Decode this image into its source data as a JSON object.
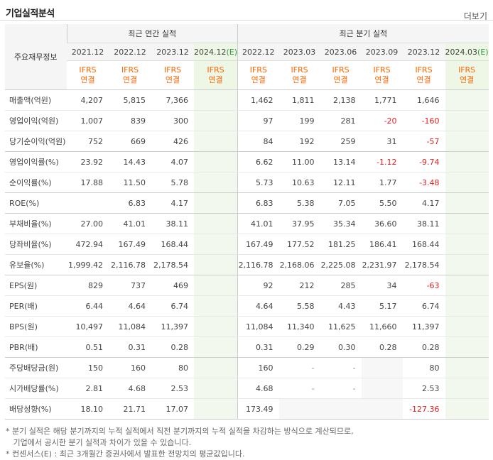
{
  "header": {
    "title": "기업실적분석",
    "more": "더보기"
  },
  "table": {
    "label_header": "주요재무정보",
    "group_annual": "최근 연간 실적",
    "group_quarter": "최근 분기 실적",
    "annual_periods": [
      "2021.12",
      "2022.12",
      "2023.12",
      "2024.12"
    ],
    "quarter_periods": [
      "2022.12",
      "2023.03",
      "2023.06",
      "2023.09",
      "2023.12",
      "2024.03"
    ],
    "estimate_mark": "(E)",
    "ifrs_line1": "IFRS",
    "ifrs_line2": "연결",
    "rows": [
      {
        "label": "매출액(억원)",
        "annual": [
          "4,207",
          "5,815",
          "7,366",
          ""
        ],
        "quarter": [
          "1,462",
          "1,811",
          "2,138",
          "1,771",
          "1,646",
          ""
        ]
      },
      {
        "label": "영업이익(억원)",
        "annual": [
          "1,007",
          "839",
          "300",
          ""
        ],
        "quarter": [
          "97",
          "199",
          "281",
          "-20",
          "-160",
          ""
        ]
      },
      {
        "label": "당기순이익(억원)",
        "annual": [
          "752",
          "669",
          "426",
          ""
        ],
        "quarter": [
          "84",
          "192",
          "259",
          "31",
          "-57",
          ""
        ]
      },
      {
        "label": "영업이익률(%)",
        "annual": [
          "23.92",
          "14.43",
          "4.07",
          ""
        ],
        "quarter": [
          "6.62",
          "11.00",
          "13.14",
          "-1.12",
          "-9.74",
          ""
        ]
      },
      {
        "label": "순이익률(%)",
        "annual": [
          "17.88",
          "11.50",
          "5.78",
          ""
        ],
        "quarter": [
          "5.73",
          "10.63",
          "12.11",
          "1.77",
          "-3.48",
          ""
        ]
      },
      {
        "label": "ROE(%)",
        "annual": [
          "",
          "6.83",
          "4.17",
          ""
        ],
        "quarter": [
          "6.83",
          "5.38",
          "7.05",
          "5.50",
          "4.17",
          ""
        ]
      },
      {
        "label": "부채비율(%)",
        "annual": [
          "27.00",
          "41.01",
          "38.11",
          ""
        ],
        "quarter": [
          "41.01",
          "37.95",
          "35.34",
          "36.60",
          "38.11",
          ""
        ]
      },
      {
        "label": "당좌비율(%)",
        "annual": [
          "472.94",
          "167.49",
          "168.44",
          ""
        ],
        "quarter": [
          "167.49",
          "177.52",
          "181.25",
          "186.41",
          "168.44",
          ""
        ]
      },
      {
        "label": "유보율(%)",
        "annual": [
          "1,999.42",
          "2,116.78",
          "2,178.54",
          ""
        ],
        "quarter": [
          "2,116.78",
          "2,168.06",
          "2,225.08",
          "2,231.97",
          "2,178.54",
          ""
        ]
      },
      {
        "label": "EPS(원)",
        "annual": [
          "829",
          "737",
          "469",
          ""
        ],
        "quarter": [
          "92",
          "212",
          "285",
          "34",
          "-63",
          ""
        ]
      },
      {
        "label": "PER(배)",
        "annual": [
          "6.44",
          "4.64",
          "6.74",
          ""
        ],
        "quarter": [
          "4.64",
          "5.58",
          "4.43",
          "5.17",
          "6.74",
          ""
        ]
      },
      {
        "label": "BPS(원)",
        "annual": [
          "10,497",
          "11,084",
          "11,397",
          ""
        ],
        "quarter": [
          "11,084",
          "11,340",
          "11,625",
          "11,660",
          "11,397",
          ""
        ]
      },
      {
        "label": "PBR(배)",
        "annual": [
          "0.51",
          "0.31",
          "0.28",
          ""
        ],
        "quarter": [
          "0.31",
          "0.29",
          "0.30",
          "0.28",
          "0.28",
          ""
        ]
      },
      {
        "label": "주당배당금(원)",
        "annual": [
          "150",
          "160",
          "80",
          ""
        ],
        "quarter": [
          "160",
          "-",
          "-",
          "",
          "80",
          ""
        ]
      },
      {
        "label": "시가배당률(%)",
        "annual": [
          "2.81",
          "4.68",
          "2.53",
          ""
        ],
        "quarter": [
          "4.68",
          "-",
          "-",
          "",
          "2.53",
          ""
        ]
      },
      {
        "label": "배당성향(%)",
        "annual": [
          "18.10",
          "21.71",
          "17.07",
          ""
        ],
        "quarter": [
          "173.49",
          "",
          "",
          "",
          "-127.36",
          ""
        ]
      }
    ]
  },
  "notes": [
    "* 분기 실적은 해당 분기까지의 누적 실적에서 직전 분기까지의 누적 실적을 차감하는 방식으로 계산되므로,",
    "   기업에서 공시한 분기 실적과 차이가 있을 수 있습니다.",
    "* 컨센서스(E) : 최근 3개월간 증권사에서 발표한 전망치의 평균값입니다."
  ]
}
